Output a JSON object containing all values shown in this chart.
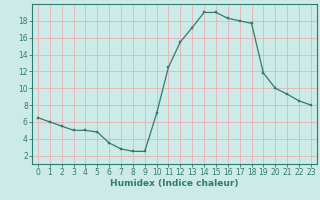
{
  "x": [
    0,
    1,
    2,
    3,
    4,
    5,
    6,
    7,
    8,
    9,
    10,
    11,
    12,
    13,
    14,
    15,
    16,
    17,
    18,
    19,
    20,
    21,
    22,
    23
  ],
  "y": [
    6.5,
    6.0,
    5.5,
    5.0,
    5.0,
    4.8,
    3.5,
    2.8,
    2.5,
    2.5,
    7.0,
    12.5,
    15.5,
    17.2,
    19.0,
    19.0,
    18.3,
    18.0,
    17.7,
    11.8,
    10.0,
    9.3,
    8.5,
    8.0
  ],
  "line_color": "#2e7d6e",
  "marker_color": "#2e7d6e",
  "bg_color": "#cceae8",
  "grid_color": "#e8b0b0",
  "axis_color": "#2e7d6e",
  "xlabel": "Humidex (Indice chaleur)",
  "ylim": [
    1,
    20
  ],
  "xlim": [
    -0.5,
    23.5
  ],
  "yticks": [
    2,
    4,
    6,
    8,
    10,
    12,
    14,
    16,
    18
  ],
  "xticks": [
    0,
    1,
    2,
    3,
    4,
    5,
    6,
    7,
    8,
    9,
    10,
    11,
    12,
    13,
    14,
    15,
    16,
    17,
    18,
    19,
    20,
    21,
    22,
    23
  ],
  "label_fontsize": 6.5,
  "tick_fontsize": 5.5
}
